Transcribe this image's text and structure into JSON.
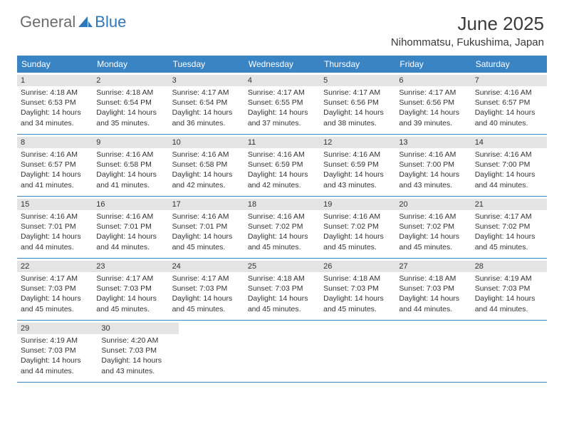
{
  "brand": {
    "first": "General",
    "second": "Blue"
  },
  "title": "June 2025",
  "location": "Nihommatsu, Fukushima, Japan",
  "colors": {
    "header_bg": "#3b84c4",
    "header_text": "#ffffff",
    "daynum_bg": "#e4e4e4",
    "border": "#3b84c4",
    "text": "#333333",
    "brand_gray": "#6c6c6c",
    "brand_blue": "#2f76ba"
  },
  "day_names": [
    "Sunday",
    "Monday",
    "Tuesday",
    "Wednesday",
    "Thursday",
    "Friday",
    "Saturday"
  ],
  "weeks": [
    [
      {
        "n": "1",
        "sunrise": "4:18 AM",
        "sunset": "6:53 PM",
        "daylight": "14 hours and 34 minutes."
      },
      {
        "n": "2",
        "sunrise": "4:18 AM",
        "sunset": "6:54 PM",
        "daylight": "14 hours and 35 minutes."
      },
      {
        "n": "3",
        "sunrise": "4:17 AM",
        "sunset": "6:54 PM",
        "daylight": "14 hours and 36 minutes."
      },
      {
        "n": "4",
        "sunrise": "4:17 AM",
        "sunset": "6:55 PM",
        "daylight": "14 hours and 37 minutes."
      },
      {
        "n": "5",
        "sunrise": "4:17 AM",
        "sunset": "6:56 PM",
        "daylight": "14 hours and 38 minutes."
      },
      {
        "n": "6",
        "sunrise": "4:17 AM",
        "sunset": "6:56 PM",
        "daylight": "14 hours and 39 minutes."
      },
      {
        "n": "7",
        "sunrise": "4:16 AM",
        "sunset": "6:57 PM",
        "daylight": "14 hours and 40 minutes."
      }
    ],
    [
      {
        "n": "8",
        "sunrise": "4:16 AM",
        "sunset": "6:57 PM",
        "daylight": "14 hours and 41 minutes."
      },
      {
        "n": "9",
        "sunrise": "4:16 AM",
        "sunset": "6:58 PM",
        "daylight": "14 hours and 41 minutes."
      },
      {
        "n": "10",
        "sunrise": "4:16 AM",
        "sunset": "6:58 PM",
        "daylight": "14 hours and 42 minutes."
      },
      {
        "n": "11",
        "sunrise": "4:16 AM",
        "sunset": "6:59 PM",
        "daylight": "14 hours and 42 minutes."
      },
      {
        "n": "12",
        "sunrise": "4:16 AM",
        "sunset": "6:59 PM",
        "daylight": "14 hours and 43 minutes."
      },
      {
        "n": "13",
        "sunrise": "4:16 AM",
        "sunset": "7:00 PM",
        "daylight": "14 hours and 43 minutes."
      },
      {
        "n": "14",
        "sunrise": "4:16 AM",
        "sunset": "7:00 PM",
        "daylight": "14 hours and 44 minutes."
      }
    ],
    [
      {
        "n": "15",
        "sunrise": "4:16 AM",
        "sunset": "7:01 PM",
        "daylight": "14 hours and 44 minutes."
      },
      {
        "n": "16",
        "sunrise": "4:16 AM",
        "sunset": "7:01 PM",
        "daylight": "14 hours and 44 minutes."
      },
      {
        "n": "17",
        "sunrise": "4:16 AM",
        "sunset": "7:01 PM",
        "daylight": "14 hours and 45 minutes."
      },
      {
        "n": "18",
        "sunrise": "4:16 AM",
        "sunset": "7:02 PM",
        "daylight": "14 hours and 45 minutes."
      },
      {
        "n": "19",
        "sunrise": "4:16 AM",
        "sunset": "7:02 PM",
        "daylight": "14 hours and 45 minutes."
      },
      {
        "n": "20",
        "sunrise": "4:16 AM",
        "sunset": "7:02 PM",
        "daylight": "14 hours and 45 minutes."
      },
      {
        "n": "21",
        "sunrise": "4:17 AM",
        "sunset": "7:02 PM",
        "daylight": "14 hours and 45 minutes."
      }
    ],
    [
      {
        "n": "22",
        "sunrise": "4:17 AM",
        "sunset": "7:03 PM",
        "daylight": "14 hours and 45 minutes."
      },
      {
        "n": "23",
        "sunrise": "4:17 AM",
        "sunset": "7:03 PM",
        "daylight": "14 hours and 45 minutes."
      },
      {
        "n": "24",
        "sunrise": "4:17 AM",
        "sunset": "7:03 PM",
        "daylight": "14 hours and 45 minutes."
      },
      {
        "n": "25",
        "sunrise": "4:18 AM",
        "sunset": "7:03 PM",
        "daylight": "14 hours and 45 minutes."
      },
      {
        "n": "26",
        "sunrise": "4:18 AM",
        "sunset": "7:03 PM",
        "daylight": "14 hours and 45 minutes."
      },
      {
        "n": "27",
        "sunrise": "4:18 AM",
        "sunset": "7:03 PM",
        "daylight": "14 hours and 44 minutes."
      },
      {
        "n": "28",
        "sunrise": "4:19 AM",
        "sunset": "7:03 PM",
        "daylight": "14 hours and 44 minutes."
      }
    ],
    [
      {
        "n": "29",
        "sunrise": "4:19 AM",
        "sunset": "7:03 PM",
        "daylight": "14 hours and 44 minutes."
      },
      {
        "n": "30",
        "sunrise": "4:20 AM",
        "sunset": "7:03 PM",
        "daylight": "14 hours and 43 minutes."
      },
      null,
      null,
      null,
      null,
      null
    ]
  ],
  "labels": {
    "sunrise_prefix": "Sunrise: ",
    "sunset_prefix": "Sunset: ",
    "daylight_prefix": "Daylight: "
  }
}
